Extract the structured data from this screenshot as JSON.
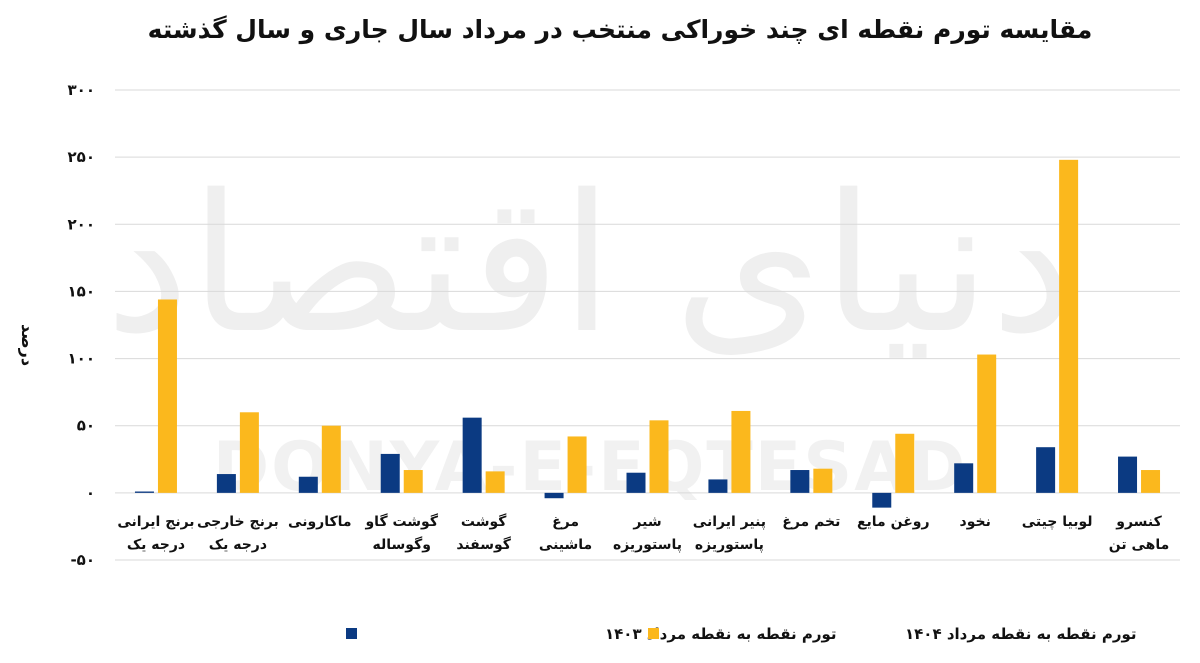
{
  "watermark": {
    "arabic": "دنیای اقتصاد",
    "latin": "DONYA-E-EQTESAD"
  },
  "chart_data": {
    "type": "bar",
    "title": "مقایسه تورم نقطه ای چند خوراکی منتخب در مرداد سال جاری و سال گذشته",
    "ylabel": "درصد",
    "xlabel": "",
    "ylim": [
      -50,
      300
    ],
    "yticks": [
      -50,
      0,
      50,
      100,
      150,
      200,
      250,
      300
    ],
    "ytick_labels": [
      "-۵۰",
      "۰",
      "۵۰",
      "۱۰۰",
      "۱۵۰",
      "۲۰۰",
      "۲۵۰",
      "۳۰۰"
    ],
    "grid": true,
    "legend_position": "bottom",
    "categories": [
      [
        "برنج ایرانی",
        "درجه یک"
      ],
      [
        "برنج خارجی",
        "درجه یک"
      ],
      [
        "ماکارونی"
      ],
      [
        "گوشت گاو",
        "وگوساله"
      ],
      [
        "گوشت",
        "گوسفند"
      ],
      [
        "مرغ",
        "ماشینی"
      ],
      [
        "شیر",
        "پاستوریزه"
      ],
      [
        "پنیر ایرانی",
        "پاستوریزه"
      ],
      [
        "تخم مرغ"
      ],
      [
        "روغن مایع"
      ],
      [
        "نخود"
      ],
      [
        "لوبیا چیتی"
      ],
      [
        "کنسرو",
        "ماهی تن"
      ]
    ],
    "series": [
      {
        "name": "تورم نقطه به نقطه مرداد ۱۴۰۳",
        "color": "#0b3a82",
        "values": [
          1,
          14,
          12,
          29,
          56,
          -4,
          15,
          10,
          17,
          -11,
          22,
          34,
          27
        ]
      },
      {
        "name": "تورم نقطه به نقطه مرداد ۱۴۰۴",
        "color": "#fbb81d",
        "values": [
          144,
          60,
          50,
          17,
          16,
          42,
          54,
          61,
          18,
          44,
          103,
          248,
          17
        ]
      }
    ]
  }
}
